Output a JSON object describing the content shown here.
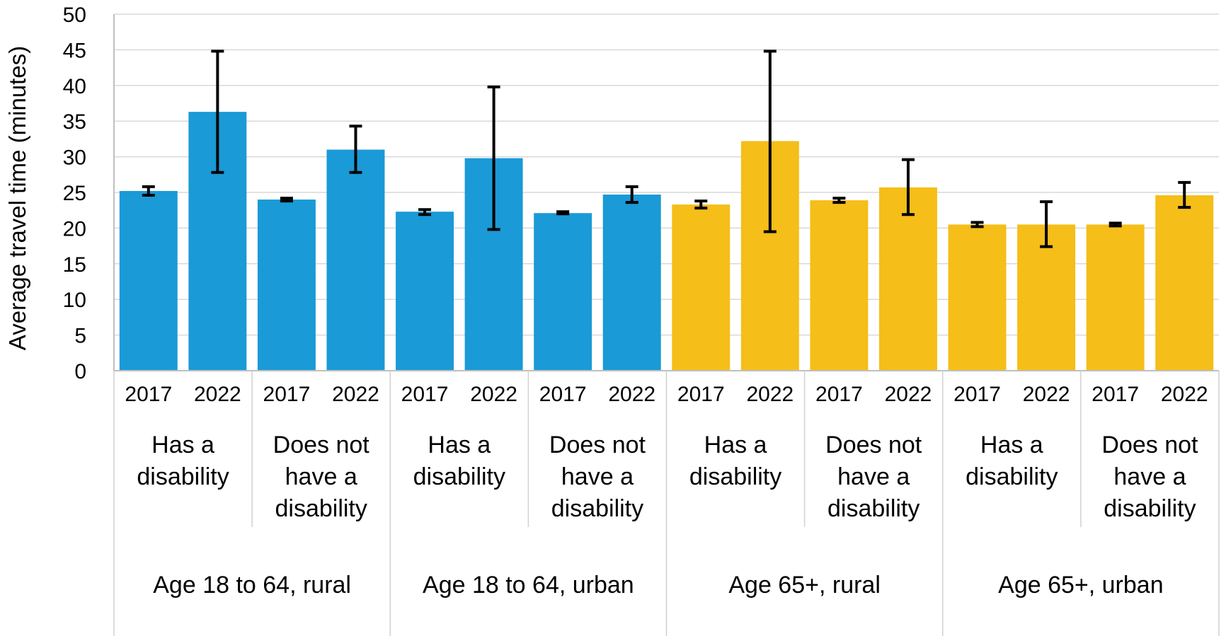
{
  "chart_data": {
    "type": "bar",
    "title": "",
    "ylabel": "Average travel time (minutes)",
    "xlabel": "",
    "ylim": [
      0,
      50
    ],
    "yticks": [
      0,
      5,
      10,
      15,
      20,
      25,
      30,
      35,
      40,
      45,
      50
    ],
    "grid": true,
    "colors": {
      "age_18_64": "#1a9ad6",
      "age_65_plus": "#f5be18",
      "error_bar": "#000000",
      "grid": "#d9d9d9"
    },
    "groups": [
      {
        "label": "Age 18 to 64, rural",
        "color_key": "age_18_64",
        "subgroups": [
          {
            "label_lines": [
              "Has a",
              "disability"
            ],
            "bars": [
              {
                "year": "2017",
                "value": 25.2,
                "err_low": 24.6,
                "err_high": 25.8
              },
              {
                "year": "2022",
                "value": 36.3,
                "err_low": 27.8,
                "err_high": 44.8
              }
            ]
          },
          {
            "label_lines": [
              "Does not",
              "have a",
              "disability"
            ],
            "bars": [
              {
                "year": "2017",
                "value": 24.0,
                "err_low": 23.8,
                "err_high": 24.2
              },
              {
                "year": "2022",
                "value": 31.0,
                "err_low": 27.8,
                "err_high": 34.3
              }
            ]
          }
        ]
      },
      {
        "label": "Age 18 to 64, urban",
        "color_key": "age_18_64",
        "subgroups": [
          {
            "label_lines": [
              "Has a",
              "disability"
            ],
            "bars": [
              {
                "year": "2017",
                "value": 22.3,
                "err_low": 21.9,
                "err_high": 22.6
              },
              {
                "year": "2022",
                "value": 29.8,
                "err_low": 19.8,
                "err_high": 39.8
              }
            ]
          },
          {
            "label_lines": [
              "Does not",
              "have a",
              "disability"
            ],
            "bars": [
              {
                "year": "2017",
                "value": 22.1,
                "err_low": 22.0,
                "err_high": 22.3
              },
              {
                "year": "2022",
                "value": 24.7,
                "err_low": 23.6,
                "err_high": 25.8
              }
            ]
          }
        ]
      },
      {
        "label": "Age 65+, rural",
        "color_key": "age_65_plus",
        "subgroups": [
          {
            "label_lines": [
              "Has a",
              "disability"
            ],
            "bars": [
              {
                "year": "2017",
                "value": 23.3,
                "err_low": 22.8,
                "err_high": 23.8
              },
              {
                "year": "2022",
                "value": 32.2,
                "err_low": 19.5,
                "err_high": 44.8
              }
            ]
          },
          {
            "label_lines": [
              "Does not",
              "have a",
              "disability"
            ],
            "bars": [
              {
                "year": "2017",
                "value": 23.9,
                "err_low": 23.6,
                "err_high": 24.2
              },
              {
                "year": "2022",
                "value": 25.7,
                "err_low": 21.9,
                "err_high": 29.6
              }
            ]
          }
        ]
      },
      {
        "label": "Age 65+, urban",
        "color_key": "age_65_plus",
        "subgroups": [
          {
            "label_lines": [
              "Has a",
              "disability"
            ],
            "bars": [
              {
                "year": "2017",
                "value": 20.5,
                "err_low": 20.2,
                "err_high": 20.8
              },
              {
                "year": "2022",
                "value": 20.5,
                "err_low": 17.4,
                "err_high": 23.7
              }
            ]
          },
          {
            "label_lines": [
              "Does not",
              "have a",
              "disability"
            ],
            "bars": [
              {
                "year": "2017",
                "value": 20.5,
                "err_low": 20.3,
                "err_high": 20.7
              },
              {
                "year": "2022",
                "value": 24.6,
                "err_low": 22.9,
                "err_high": 26.4
              }
            ]
          }
        ]
      }
    ]
  }
}
